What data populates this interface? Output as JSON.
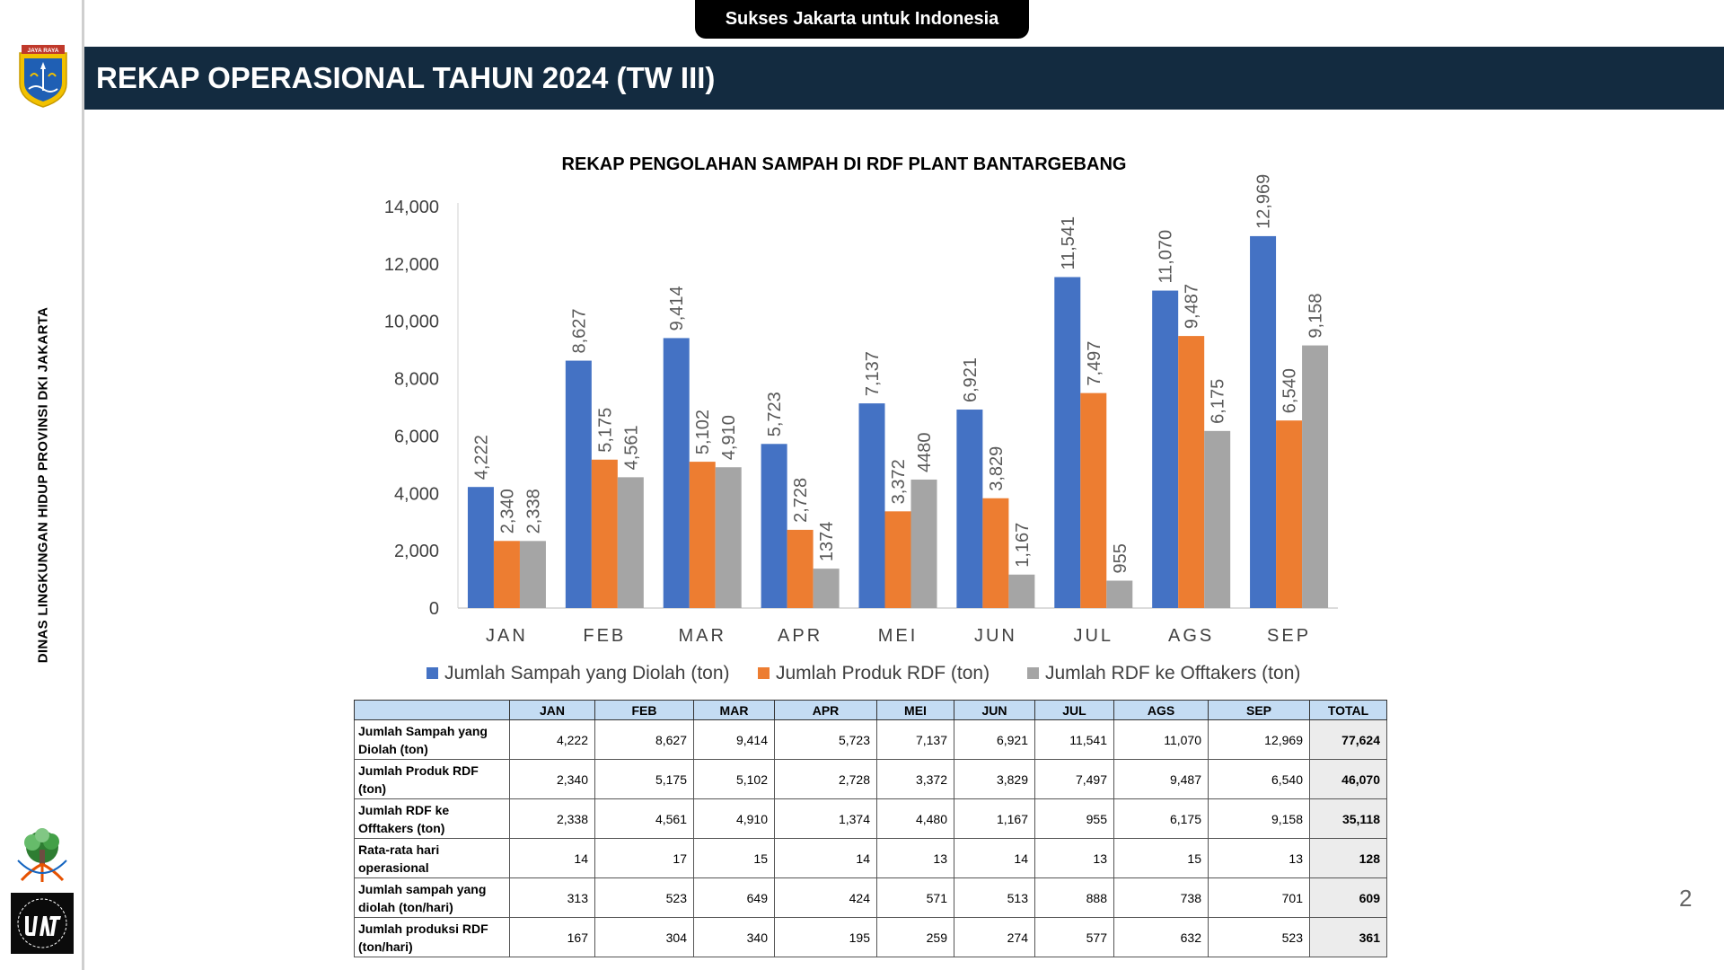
{
  "header": {
    "tagline": "Sukses Jakarta untuk Indonesia",
    "title": "REKAP OPERASIONAL TAHUN 2024 (TW III)",
    "side_text": "DINAS LINGKUNGAN HIDUP PROVINSI DKI JAKARTA",
    "logo_text": "JAYA RAYA",
    "page_number": "2"
  },
  "colors": {
    "header_bg": "#132b40",
    "series": [
      "#4472c4",
      "#ed7d31",
      "#a5a5a5"
    ],
    "table_header": "#c4dcf3"
  },
  "icons": [
    "jakarta-emblem-icon",
    "environment-agency-logo-icon",
    "upst-logo-icon"
  ],
  "chart_data": {
    "type": "bar",
    "title": "REKAP PENGOLAHAN SAMPAH DI RDF PLANT BANTARGEBANG",
    "categories": [
      "JAN",
      "FEB",
      "MAR",
      "APR",
      "MEI",
      "JUN",
      "JUL",
      "AGS",
      "SEP"
    ],
    "series": [
      {
        "name": "Jumlah Sampah yang Diolah (ton)",
        "values": [
          4222,
          8627,
          9414,
          5723,
          7137,
          6921,
          11541,
          11070,
          12969
        ],
        "labels": [
          "4,222",
          "8,627",
          "9,414",
          "5,723",
          "7,137",
          "6,921",
          "11,541",
          "11,070",
          "12,969"
        ]
      },
      {
        "name": "Jumlah Produk RDF (ton)",
        "values": [
          2340,
          5175,
          5102,
          2728,
          3372,
          3829,
          7497,
          9487,
          6540
        ],
        "labels": [
          "2,340",
          "5,175",
          "5,102",
          "2,728",
          "3,372",
          "3,829",
          "7,497",
          "9,487",
          "6,540"
        ]
      },
      {
        "name": "Jumlah RDF ke Offtakers (ton)",
        "values": [
          2338,
          4561,
          4910,
          1374,
          4480,
          1167,
          955,
          6175,
          9158
        ],
        "labels": [
          "2,338",
          "4,561",
          "4,910",
          "1374",
          "4480",
          "1,167",
          "955",
          "6,175",
          "9,158"
        ]
      }
    ],
    "ylim": [
      0,
      14000
    ],
    "yticks": [
      "0",
      "2,000",
      "4,000",
      "6,000",
      "8,000",
      "10,000",
      "12,000",
      "14,000"
    ],
    "grid": false,
    "legend": "bottom"
  },
  "table": {
    "columns": [
      "",
      "JAN",
      "FEB",
      "MAR",
      "APR",
      "MEI",
      "JUN",
      "JUL",
      "AGS",
      "SEP",
      "TOTAL"
    ],
    "rows": [
      {
        "label": " Jumlah Sampah yang\nDiolah (ton)",
        "values": [
          "4,222",
          "8,627",
          "9,414",
          "5,723",
          "7,137",
          "6,921",
          "11,541",
          "11,070",
          "12,969"
        ],
        "total": "77,624"
      },
      {
        "label": " Jumlah Produk RDF\n(ton)",
        "values": [
          "2,340",
          "5,175",
          "5,102",
          "2,728",
          "3,372",
          "3,829",
          "7,497",
          "9,487",
          "6,540"
        ],
        "total": "46,070"
      },
      {
        "label": " Jumlah RDF ke\nOfftakers (ton)",
        "values": [
          "2,338",
          "4,561",
          "4,910",
          "1,374",
          "4,480",
          "1,167",
          "955",
          "6,175",
          "9,158"
        ],
        "total": "35,118"
      },
      {
        "label": " Rata-rata hari\noperasional",
        "values": [
          "14",
          "17",
          "15",
          "14",
          "13",
          "14",
          "13",
          "15",
          "13"
        ],
        "total": "128"
      },
      {
        "label": " Jumlah sampah yang\ndiolah (ton/hari)",
        "values": [
          "313",
          "523",
          "649",
          "424",
          "571",
          "513",
          "888",
          "738",
          "701"
        ],
        "total": "609"
      },
      {
        "label": " Jumlah produksi RDF\n(ton/hari)",
        "values": [
          "167",
          "304",
          "340",
          "195",
          "259",
          "274",
          "577",
          "632",
          "523"
        ],
        "total": "361"
      }
    ]
  }
}
